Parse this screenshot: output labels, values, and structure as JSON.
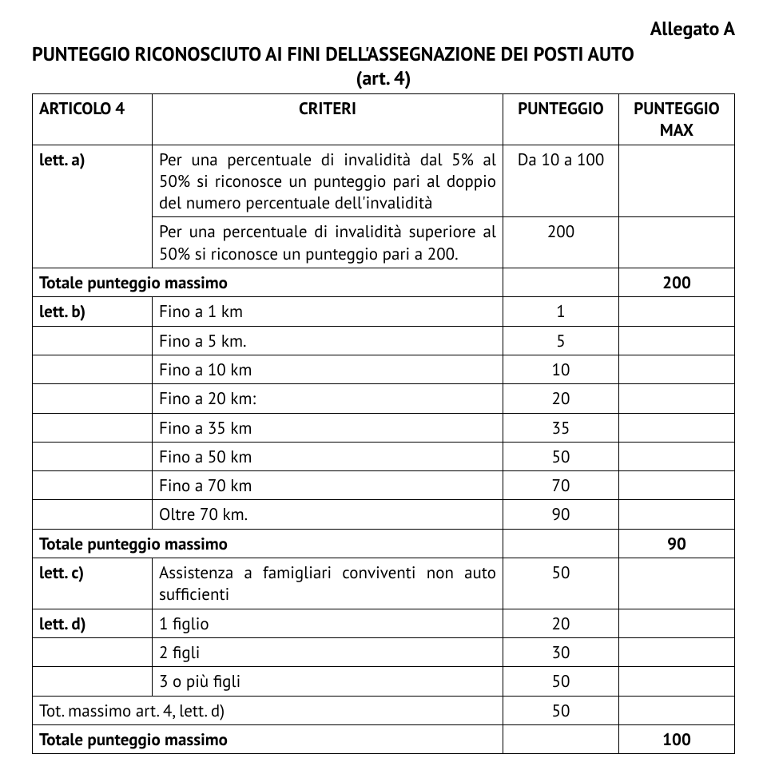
{
  "allegato": "Allegato A",
  "main_title_line1": "PUNTEGGIO RICONOSCIUTO AI FINI DELL'ASSEGNAZIONE DEI POSTI AUTO",
  "main_title_line2": "(art. 4)",
  "headers": {
    "col1": "ARTICOLO 4",
    "col2": "CRITERI",
    "col3": "PUNTEGGIO",
    "col4": "PUNTEGGIO MAX"
  },
  "rows": {
    "a_label": "lett. a)",
    "a_crit1": "Per una percentuale di invalidità dal 5% al 50% si riconosce un punteggio pari al doppio del numero percentuale dell'invalidità",
    "a_val1": "Da 10 a 100",
    "a_crit2": "Per una percentuale di invalidità superiore al 50% si riconosce un punteggio pari a 200.",
    "a_val2": "200",
    "tot_a": "Totale punteggio massimo",
    "tot_a_val": "200",
    "b_label": "lett. b)",
    "b_r1_c": "Fino a 1 km",
    "b_r1_v": "1",
    "b_r2_c": "Fino a 5 km.",
    "b_r2_v": "5",
    "b_r3_c": "Fino a 10 km",
    "b_r3_v": "10",
    "b_r4_c": "Fino a 20 km:",
    "b_r4_v": "20",
    "b_r5_c": "Fino a 35 km",
    "b_r5_v": "35",
    "b_r6_c": "Fino a 50 km",
    "b_r6_v": "50",
    "b_r7_c": "Fino a 70 km",
    "b_r7_v": "70",
    "b_r8_c": "Oltre 70 km.",
    "b_r8_v": "90",
    "tot_b": "Totale punteggio massimo",
    "tot_b_val": "90",
    "c_label": "lett. c)",
    "c_crit": "Assistenza a famigliari conviventi non auto sufficienti",
    "c_val": "50",
    "d_label": "lett. d)",
    "d_r1_c": "1 figlio",
    "d_r1_v": "20",
    "d_r2_c": "2 figli",
    "d_r2_v": "30",
    "d_r3_c": "3 o più figli",
    "d_r3_v": "50",
    "tot_d_art": "Tot. massimo art. 4, lett. d)",
    "tot_d_art_val": "50",
    "tot_final": "Totale punteggio massimo",
    "tot_final_val": "100"
  }
}
